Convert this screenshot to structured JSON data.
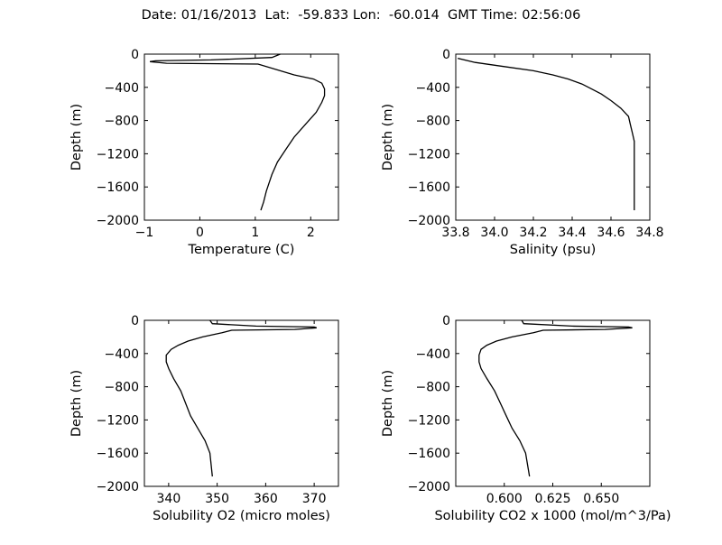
{
  "title": "Date: 01/16/2013  Lat:  -59.833 Lon:  -60.014  GMT Time: 02:56:06",
  "chart_data": [
    {
      "type": "line",
      "name": "temperature",
      "xlabel": "Temperature (C)",
      "ylabel": "Depth (m)",
      "xlim": [
        -1,
        2.5
      ],
      "ylim": [
        -2000,
        0
      ],
      "xticks": [
        -1,
        0,
        1,
        2
      ],
      "xtick_labels": [
        "−1",
        "0",
        "1",
        "2"
      ],
      "yticks": [
        0,
        -400,
        -800,
        -1200,
        -1600,
        -2000
      ],
      "ytick_labels": [
        "0",
        "−400",
        "−800",
        "−1200",
        "−1600",
        "−2000"
      ],
      "grid": false,
      "x": [
        1.45,
        1.3,
        0.2,
        -0.8,
        -0.9,
        -0.6,
        1.05,
        1.7,
        2.05,
        2.2,
        2.25,
        2.25,
        2.2,
        2.1,
        1.9,
        1.7,
        1.55,
        1.4,
        1.3,
        1.25,
        1.2,
        1.15,
        1.1
      ],
      "y": [
        0,
        -40,
        -70,
        -80,
        -90,
        -110,
        -120,
        -250,
        -300,
        -350,
        -420,
        -500,
        -580,
        -700,
        -850,
        -1000,
        -1150,
        -1300,
        -1450,
        -1550,
        -1650,
        -1780,
        -1880
      ]
    },
    {
      "type": "line",
      "name": "salinity",
      "xlabel": "Salinity (psu)",
      "ylabel": "Depth (m)",
      "xlim": [
        33.8,
        34.8
      ],
      "ylim": [
        -2000,
        0
      ],
      "xticks": [
        33.8,
        34.0,
        34.2,
        34.4,
        34.6,
        34.8
      ],
      "xtick_labels": [
        "33.8",
        "34.0",
        "34.2",
        "34.4",
        "34.6",
        "34.8"
      ],
      "yticks": [
        0,
        -400,
        -800,
        -1200,
        -1600,
        -2000
      ],
      "ytick_labels": [
        "0",
        "−400",
        "−800",
        "−1200",
        "−1600",
        "−2000"
      ],
      "grid": false,
      "x": [
        33.81,
        33.9,
        34.05,
        34.2,
        34.3,
        34.38,
        34.45,
        34.5,
        34.55,
        34.6,
        34.65,
        34.69,
        34.7,
        34.71,
        34.72,
        34.72,
        34.72,
        34.72,
        34.72
      ],
      "y": [
        -50,
        -100,
        -150,
        -200,
        -250,
        -300,
        -360,
        -420,
        -480,
        -560,
        -650,
        -750,
        -850,
        -950,
        -1050,
        -1200,
        -1400,
        -1600,
        -1880
      ]
    },
    {
      "type": "line",
      "name": "solubility-o2",
      "xlabel": "Solubility O2 (micro moles)",
      "ylabel": "Depth (m)",
      "xlim": [
        335,
        375
      ],
      "ylim": [
        -2000,
        0
      ],
      "xticks": [
        340,
        350,
        360,
        370
      ],
      "xtick_labels": [
        "340",
        "350",
        "360",
        "370"
      ],
      "yticks": [
        0,
        -400,
        -800,
        -1200,
        -1600,
        -2000
      ],
      "ytick_labels": [
        "0",
        "−400",
        "−800",
        "−1200",
        "−1600",
        "−2000"
      ],
      "grid": false,
      "x": [
        348.5,
        349,
        358,
        370,
        370.5,
        366,
        353,
        351,
        347,
        344,
        342,
        340.5,
        339.5,
        339.5,
        340,
        341,
        342.5,
        343.5,
        344.5,
        346,
        347.5,
        348.5,
        349
      ],
      "y": [
        0,
        -40,
        -70,
        -80,
        -90,
        -110,
        -120,
        -150,
        -200,
        -250,
        -300,
        -350,
        -420,
        -500,
        -580,
        -700,
        -850,
        -1000,
        -1150,
        -1300,
        -1450,
        -1600,
        -1880
      ]
    },
    {
      "type": "line",
      "name": "solubility-co2",
      "xlabel": "Solubility CO2 x 1000 (mol/m^3/Pa)",
      "ylabel": "Depth (m)",
      "xlim": [
        0.575,
        0.675
      ],
      "ylim": [
        -2000,
        0
      ],
      "xticks": [
        0.6,
        0.625,
        0.65
      ],
      "xtick_labels": [
        "0.600",
        "0.625",
        "0.650"
      ],
      "yticks": [
        0,
        -400,
        -800,
        -1200,
        -1600,
        -2000
      ],
      "ytick_labels": [
        "0",
        "−400",
        "−800",
        "−1200",
        "−1600",
        "−2000"
      ],
      "grid": false,
      "x": [
        0.609,
        0.61,
        0.635,
        0.664,
        0.666,
        0.652,
        0.62,
        0.615,
        0.604,
        0.596,
        0.591,
        0.588,
        0.587,
        0.587,
        0.588,
        0.591,
        0.595,
        0.598,
        0.601,
        0.604,
        0.608,
        0.611,
        0.613
      ],
      "y": [
        0,
        -40,
        -70,
        -80,
        -90,
        -110,
        -120,
        -150,
        -200,
        -250,
        -300,
        -350,
        -420,
        -500,
        -580,
        -700,
        -850,
        -1000,
        -1150,
        -1300,
        -1450,
        -1600,
        -1880
      ]
    }
  ]
}
